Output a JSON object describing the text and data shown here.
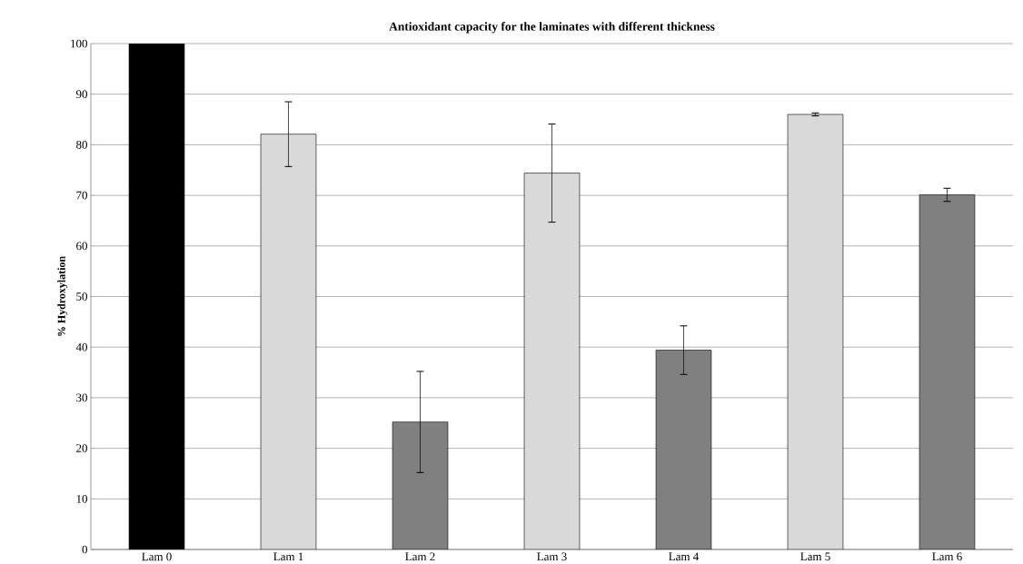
{
  "chart_data": {
    "type": "bar",
    "title": "Antioxidant capacity for the laminates with different thickness",
    "ylabel": "% Hydroxylation",
    "categories": [
      "Lam 0",
      "Lam 1",
      "Lam 2",
      "Lam 3",
      "Lam 4",
      "Lam 5",
      "Lam 6"
    ],
    "values": [
      100,
      82.1,
      25.2,
      74.4,
      39.4,
      86.0,
      70.1
    ],
    "errors": [
      null,
      6.4,
      10.0,
      9.7,
      4.8,
      0.3,
      1.3
    ],
    "colors": [
      "#000000",
      "#d9d9d9",
      "#808080",
      "#d9d9d9",
      "#808080",
      "#d9d9d9",
      "#808080"
    ],
    "ylim": [
      0,
      100
    ],
    "yticks": [
      0,
      10,
      20,
      30,
      40,
      50,
      60,
      70,
      80,
      90,
      100
    ],
    "grid": "y"
  }
}
